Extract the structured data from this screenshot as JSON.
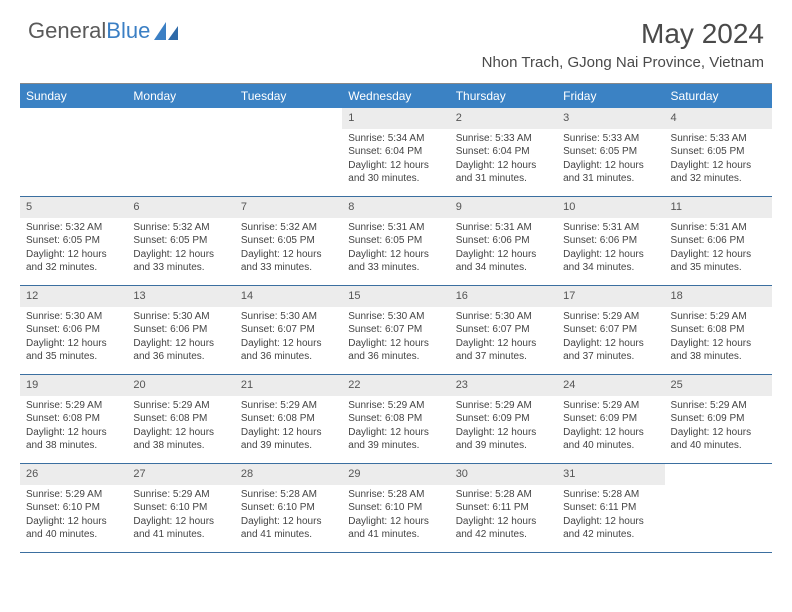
{
  "brand": {
    "part1": "General",
    "part2": "Blue"
  },
  "title": "May 2024",
  "location": "Nhon Trach, GJong Nai Province, Vietnam",
  "colors": {
    "header_bg": "#3b82c4",
    "header_text": "#ffffff",
    "daynum_bg": "#ececec",
    "week_border": "#3b6fa0",
    "body_text": "#444444",
    "logo_gray": "#5a5a5a",
    "logo_blue": "#3b7fc4"
  },
  "weekdays": [
    "Sunday",
    "Monday",
    "Tuesday",
    "Wednesday",
    "Thursday",
    "Friday",
    "Saturday"
  ],
  "weeks": [
    [
      null,
      null,
      null,
      {
        "n": "1",
        "sr": "5:34 AM",
        "ss": "6:04 PM",
        "dl": "12 hours and 30 minutes."
      },
      {
        "n": "2",
        "sr": "5:33 AM",
        "ss": "6:04 PM",
        "dl": "12 hours and 31 minutes."
      },
      {
        "n": "3",
        "sr": "5:33 AM",
        "ss": "6:05 PM",
        "dl": "12 hours and 31 minutes."
      },
      {
        "n": "4",
        "sr": "5:33 AM",
        "ss": "6:05 PM",
        "dl": "12 hours and 32 minutes."
      }
    ],
    [
      {
        "n": "5",
        "sr": "5:32 AM",
        "ss": "6:05 PM",
        "dl": "12 hours and 32 minutes."
      },
      {
        "n": "6",
        "sr": "5:32 AM",
        "ss": "6:05 PM",
        "dl": "12 hours and 33 minutes."
      },
      {
        "n": "7",
        "sr": "5:32 AM",
        "ss": "6:05 PM",
        "dl": "12 hours and 33 minutes."
      },
      {
        "n": "8",
        "sr": "5:31 AM",
        "ss": "6:05 PM",
        "dl": "12 hours and 33 minutes."
      },
      {
        "n": "9",
        "sr": "5:31 AM",
        "ss": "6:06 PM",
        "dl": "12 hours and 34 minutes."
      },
      {
        "n": "10",
        "sr": "5:31 AM",
        "ss": "6:06 PM",
        "dl": "12 hours and 34 minutes."
      },
      {
        "n": "11",
        "sr": "5:31 AM",
        "ss": "6:06 PM",
        "dl": "12 hours and 35 minutes."
      }
    ],
    [
      {
        "n": "12",
        "sr": "5:30 AM",
        "ss": "6:06 PM",
        "dl": "12 hours and 35 minutes."
      },
      {
        "n": "13",
        "sr": "5:30 AM",
        "ss": "6:06 PM",
        "dl": "12 hours and 36 minutes."
      },
      {
        "n": "14",
        "sr": "5:30 AM",
        "ss": "6:07 PM",
        "dl": "12 hours and 36 minutes."
      },
      {
        "n": "15",
        "sr": "5:30 AM",
        "ss": "6:07 PM",
        "dl": "12 hours and 36 minutes."
      },
      {
        "n": "16",
        "sr": "5:30 AM",
        "ss": "6:07 PM",
        "dl": "12 hours and 37 minutes."
      },
      {
        "n": "17",
        "sr": "5:29 AM",
        "ss": "6:07 PM",
        "dl": "12 hours and 37 minutes."
      },
      {
        "n": "18",
        "sr": "5:29 AM",
        "ss": "6:08 PM",
        "dl": "12 hours and 38 minutes."
      }
    ],
    [
      {
        "n": "19",
        "sr": "5:29 AM",
        "ss": "6:08 PM",
        "dl": "12 hours and 38 minutes."
      },
      {
        "n": "20",
        "sr": "5:29 AM",
        "ss": "6:08 PM",
        "dl": "12 hours and 38 minutes."
      },
      {
        "n": "21",
        "sr": "5:29 AM",
        "ss": "6:08 PM",
        "dl": "12 hours and 39 minutes."
      },
      {
        "n": "22",
        "sr": "5:29 AM",
        "ss": "6:08 PM",
        "dl": "12 hours and 39 minutes."
      },
      {
        "n": "23",
        "sr": "5:29 AM",
        "ss": "6:09 PM",
        "dl": "12 hours and 39 minutes."
      },
      {
        "n": "24",
        "sr": "5:29 AM",
        "ss": "6:09 PM",
        "dl": "12 hours and 40 minutes."
      },
      {
        "n": "25",
        "sr": "5:29 AM",
        "ss": "6:09 PM",
        "dl": "12 hours and 40 minutes."
      }
    ],
    [
      {
        "n": "26",
        "sr": "5:29 AM",
        "ss": "6:10 PM",
        "dl": "12 hours and 40 minutes."
      },
      {
        "n": "27",
        "sr": "5:29 AM",
        "ss": "6:10 PM",
        "dl": "12 hours and 41 minutes."
      },
      {
        "n": "28",
        "sr": "5:28 AM",
        "ss": "6:10 PM",
        "dl": "12 hours and 41 minutes."
      },
      {
        "n": "29",
        "sr": "5:28 AM",
        "ss": "6:10 PM",
        "dl": "12 hours and 41 minutes."
      },
      {
        "n": "30",
        "sr": "5:28 AM",
        "ss": "6:11 PM",
        "dl": "12 hours and 42 minutes."
      },
      {
        "n": "31",
        "sr": "5:28 AM",
        "ss": "6:11 PM",
        "dl": "12 hours and 42 minutes."
      },
      null
    ]
  ],
  "labels": {
    "sunrise": "Sunrise:",
    "sunset": "Sunset:",
    "daylight": "Daylight:"
  }
}
